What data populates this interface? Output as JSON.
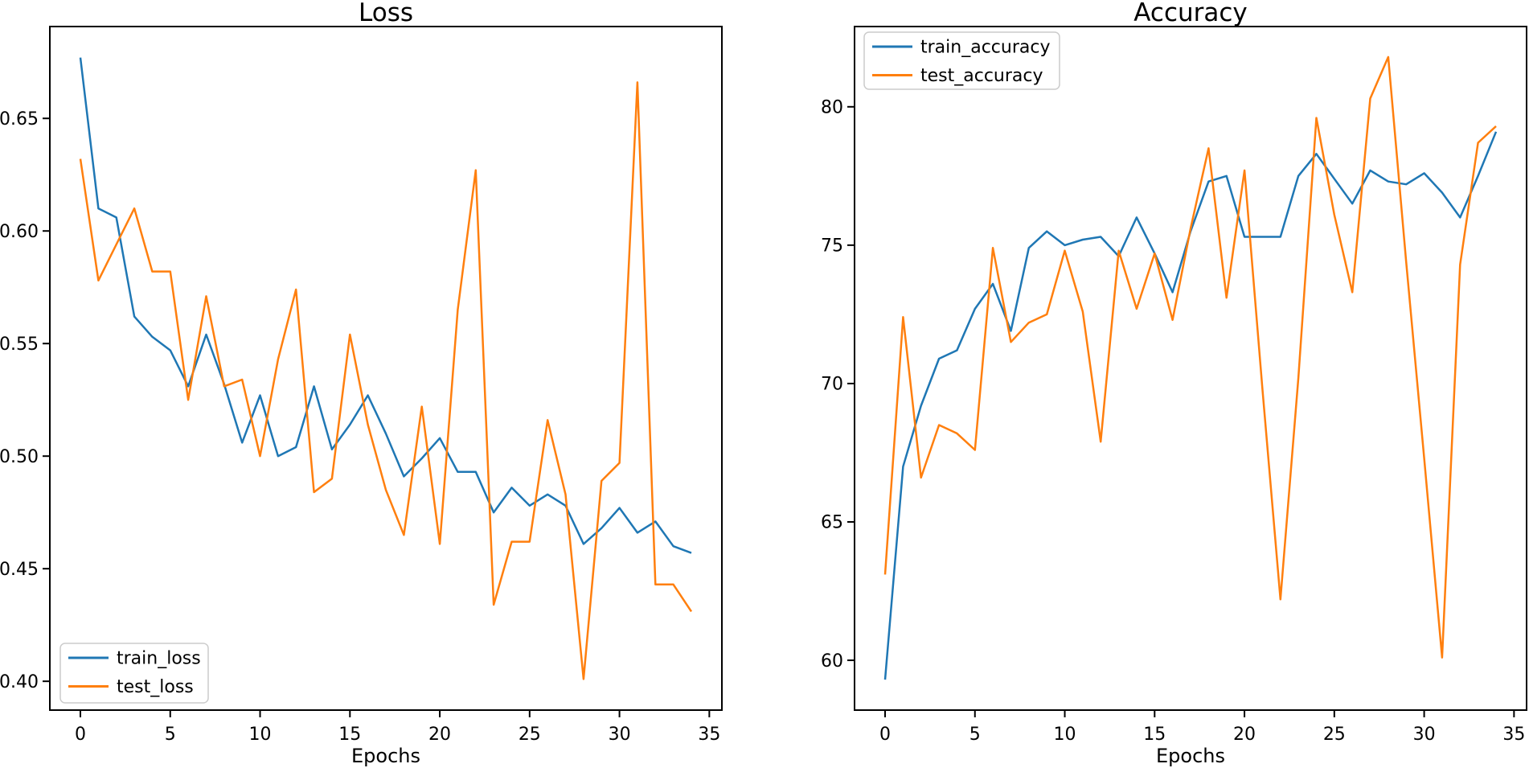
{
  "figure": {
    "background": "#ffffff",
    "text_color": "#000000",
    "spine_color": "#000000"
  },
  "chart_data": [
    {
      "id": "loss",
      "type": "line",
      "title": "Loss",
      "xlabel": "Epochs",
      "ylabel": "",
      "grid": false,
      "legend": {
        "position": "lower left",
        "labels": [
          "train_loss",
          "test_loss"
        ]
      },
      "xlim": [
        -1.7,
        35.7
      ],
      "ylim": [
        0.3872,
        0.6908
      ],
      "xticks": [
        {
          "v": 0,
          "label": "0"
        },
        {
          "v": 5,
          "label": "5"
        },
        {
          "v": 10,
          "label": "10"
        },
        {
          "v": 15,
          "label": "15"
        },
        {
          "v": 20,
          "label": "20"
        },
        {
          "v": 25,
          "label": "25"
        },
        {
          "v": 30,
          "label": "30"
        },
        {
          "v": 35,
          "label": "35"
        }
      ],
      "yticks": [
        {
          "v": 0.4,
          "label": "0.40"
        },
        {
          "v": 0.45,
          "label": "0.45"
        },
        {
          "v": 0.5,
          "label": "0.50"
        },
        {
          "v": 0.55,
          "label": "0.55"
        },
        {
          "v": 0.6,
          "label": "0.60"
        },
        {
          "v": 0.65,
          "label": "0.65"
        }
      ],
      "x": [
        0,
        1,
        2,
        3,
        4,
        5,
        6,
        7,
        8,
        9,
        10,
        11,
        12,
        13,
        14,
        15,
        16,
        17,
        18,
        19,
        20,
        21,
        22,
        23,
        24,
        25,
        26,
        27,
        28,
        29,
        30,
        31,
        32,
        33,
        34
      ],
      "series": [
        {
          "name": "train_loss",
          "color": "#1f77b4",
          "values": [
            0.677,
            0.61,
            0.606,
            0.562,
            0.553,
            0.547,
            0.531,
            0.554,
            0.532,
            0.506,
            0.527,
            0.5,
            0.504,
            0.531,
            0.503,
            0.514,
            0.527,
            0.51,
            0.491,
            0.499,
            0.508,
            0.493,
            0.493,
            0.475,
            0.486,
            0.478,
            0.483,
            0.478,
            0.461,
            0.468,
            0.477,
            0.466,
            0.471,
            0.46,
            0.457
          ]
        },
        {
          "name": "test_loss",
          "color": "#ff7f0e",
          "values": [
            0.632,
            0.578,
            0.594,
            0.61,
            0.582,
            0.582,
            0.525,
            0.571,
            0.531,
            0.534,
            0.5,
            0.543,
            0.574,
            0.484,
            0.49,
            0.554,
            0.514,
            0.485,
            0.465,
            0.522,
            0.461,
            0.565,
            0.627,
            0.434,
            0.462,
            0.462,
            0.516,
            0.483,
            0.401,
            0.489,
            0.497,
            0.666,
            0.443,
            0.443,
            0.431
          ]
        }
      ]
    },
    {
      "id": "accuracy",
      "type": "line",
      "title": "Accuracy",
      "xlabel": "Epochs",
      "ylabel": "",
      "grid": false,
      "legend": {
        "position": "upper left",
        "labels": [
          "train_accuracy",
          "test_accuracy"
        ]
      },
      "xlim": [
        -1.7,
        35.7
      ],
      "ylim": [
        58.2,
        82.9
      ],
      "xticks": [
        {
          "v": 0,
          "label": "0"
        },
        {
          "v": 5,
          "label": "5"
        },
        {
          "v": 10,
          "label": "10"
        },
        {
          "v": 15,
          "label": "15"
        },
        {
          "v": 20,
          "label": "20"
        },
        {
          "v": 25,
          "label": "25"
        },
        {
          "v": 30,
          "label": "30"
        },
        {
          "v": 35,
          "label": "35"
        }
      ],
      "yticks": [
        {
          "v": 60,
          "label": "60"
        },
        {
          "v": 65,
          "label": "65"
        },
        {
          "v": 70,
          "label": "70"
        },
        {
          "v": 75,
          "label": "75"
        },
        {
          "v": 80,
          "label": "80"
        }
      ],
      "x": [
        0,
        1,
        2,
        3,
        4,
        5,
        6,
        7,
        8,
        9,
        10,
        11,
        12,
        13,
        14,
        15,
        16,
        17,
        18,
        19,
        20,
        21,
        22,
        23,
        24,
        25,
        26,
        27,
        28,
        29,
        30,
        31,
        32,
        33,
        34
      ],
      "series": [
        {
          "name": "train_accuracy",
          "color": "#1f77b4",
          "values": [
            59.3,
            67.0,
            69.2,
            70.9,
            71.2,
            72.7,
            73.6,
            71.9,
            74.9,
            75.5,
            75.0,
            75.2,
            75.3,
            74.6,
            76.0,
            74.7,
            73.3,
            75.5,
            77.3,
            77.5,
            75.3,
            75.3,
            75.3,
            77.5,
            78.3,
            77.4,
            76.5,
            77.7,
            77.3,
            77.2,
            77.6,
            76.9,
            76.0,
            77.5,
            79.1
          ]
        },
        {
          "name": "test_accuracy",
          "color": "#ff7f0e",
          "values": [
            63.1,
            72.4,
            66.6,
            68.5,
            68.2,
            67.6,
            74.9,
            71.5,
            72.2,
            72.5,
            74.8,
            72.6,
            67.9,
            74.8,
            72.7,
            74.7,
            72.3,
            75.6,
            78.5,
            73.1,
            77.7,
            69.8,
            62.2,
            70.2,
            79.6,
            76.1,
            73.3,
            80.3,
            81.8,
            74.4,
            67.3,
            60.1,
            74.3,
            78.7,
            79.3
          ]
        }
      ]
    }
  ]
}
